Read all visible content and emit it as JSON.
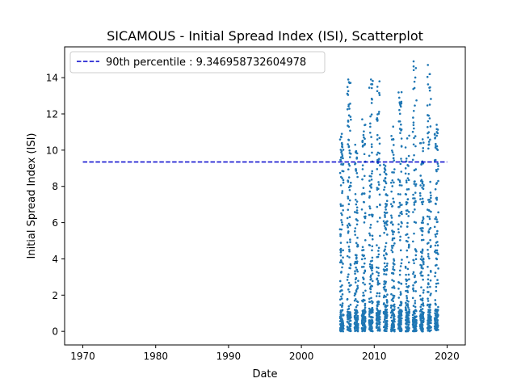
{
  "chart_data": {
    "type": "scatter",
    "title": "SICAMOUS - Initial Spread Index (ISI), Scatterplot",
    "xlabel": "Date",
    "ylabel": "Initial Spread Index (ISI)",
    "xlim": [
      1967.5,
      2022.5
    ],
    "ylim": [
      -0.75,
      15.7
    ],
    "xticks": [
      1970,
      1980,
      1990,
      2000,
      2010,
      2020
    ],
    "xtick_labels": [
      "1970",
      "1980",
      "1990",
      "2000",
      "2010",
      "2020"
    ],
    "yticks": [
      0,
      2,
      4,
      6,
      8,
      10,
      12,
      14
    ],
    "ytick_labels": [
      "0",
      "2",
      "4",
      "6",
      "8",
      "10",
      "12",
      "14"
    ],
    "grid": false,
    "legend_position": "upper-left",
    "reference_line": {
      "label": "90th percentile : 9.346958732604978",
      "value": 9.346958732604978,
      "x_range": [
        1970,
        2020
      ],
      "color": "#0000cc",
      "style": "dashed"
    },
    "series": {
      "color": "#1f77b4",
      "fire_seasons": [
        {
          "year": 2005,
          "y_max": 10.9
        },
        {
          "year": 2006,
          "y_max": 13.9
        },
        {
          "year": 2007,
          "y_max": 10.3
        },
        {
          "year": 2008,
          "y_max": 11.7
        },
        {
          "year": 2009,
          "y_max": 13.9
        },
        {
          "year": 2010,
          "y_max": 13.8
        },
        {
          "year": 2011,
          "y_max": 9.2
        },
        {
          "year": 2012,
          "y_max": 11.3
        },
        {
          "year": 2013,
          "y_max": 13.2
        },
        {
          "year": 2014,
          "y_max": 10.8
        },
        {
          "year": 2015,
          "y_max": 14.9
        },
        {
          "year": 2016,
          "y_max": 10.6
        },
        {
          "year": 2017,
          "y_max": 14.7
        },
        {
          "year": 2018,
          "y_max": 11.4
        }
      ],
      "points_per_season": 140,
      "season_start_fraction": 0.3,
      "season_end_fraction": 0.8
    }
  }
}
